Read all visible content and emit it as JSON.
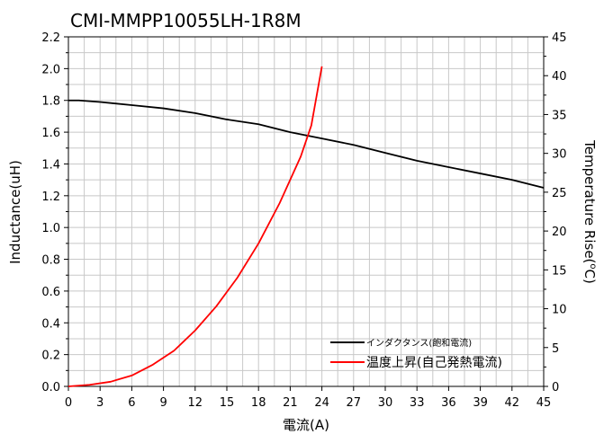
{
  "chart_data": {
    "type": "line",
    "title": "CMI-MMPP10055LH-1R8M",
    "xlabel": "電流(A)",
    "ylabel": "Inductance(uH)",
    "y2label_prefix": "Temperature Rise(",
    "y2label_unit": "C)",
    "xlim": [
      0,
      45
    ],
    "ylim": [
      0,
      2.2
    ],
    "y2lim": [
      0,
      45
    ],
    "x_ticks": [
      0,
      3,
      6,
      9,
      12,
      15,
      18,
      21,
      24,
      27,
      30,
      33,
      36,
      39,
      42,
      45
    ],
    "y_ticks": [
      "0.0",
      "0.2",
      "0.4",
      "0.6",
      "0.8",
      "1.0",
      "1.2",
      "1.4",
      "1.6",
      "1.8",
      "2.0",
      "2.2"
    ],
    "y2_ticks": [
      0,
      5,
      10,
      15,
      20,
      25,
      30,
      35,
      40,
      45
    ],
    "grid": true,
    "legend_position": "bottom-right",
    "series": [
      {
        "name": "インダクタンス(飽和電流)",
        "axis": "left",
        "color": "#000000",
        "x": [
          0,
          1,
          3,
          6,
          9,
          12,
          15,
          18,
          21,
          24,
          27,
          30,
          33,
          36,
          39,
          42,
          45
        ],
        "y": [
          1.8,
          1.8,
          1.79,
          1.77,
          1.75,
          1.72,
          1.68,
          1.65,
          1.6,
          1.56,
          1.52,
          1.47,
          1.42,
          1.38,
          1.34,
          1.3,
          1.25
        ]
      },
      {
        "name": "温度上昇(自己発熱電流)",
        "axis": "right",
        "color": "#ff0000",
        "x": [
          0,
          2,
          4,
          6,
          8,
          10,
          12,
          14,
          16,
          18,
          20,
          22,
          23,
          24
        ],
        "y": [
          0,
          0.2,
          0.6,
          1.4,
          2.8,
          4.6,
          7.2,
          10.3,
          14.0,
          18.4,
          23.6,
          29.6,
          33.6,
          41.2
        ]
      }
    ]
  }
}
